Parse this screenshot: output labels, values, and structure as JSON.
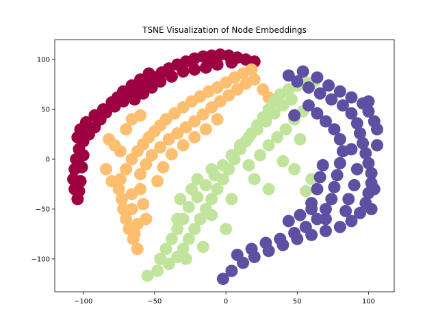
{
  "chart_data": {
    "type": "scatter",
    "title": "TSNE Visualization of Node Embeddings",
    "xlabel": "",
    "ylabel": "",
    "xlim": [
      -120,
      118
    ],
    "ylim": [
      -133,
      120
    ],
    "xticks": [
      -100,
      -50,
      0,
      50,
      100
    ],
    "yticks": [
      -100,
      -50,
      0,
      50,
      100
    ],
    "xtick_labels": [
      "−100",
      "−50",
      "0",
      "50",
      "100"
    ],
    "ytick_labels": [
      "−100",
      "−50",
      "0",
      "50",
      "100"
    ],
    "grid": false,
    "legend": "none",
    "series": [
      {
        "color": "#9e0142",
        "points": [
          [
            -104,
            -40
          ],
          [
            -106,
            -30
          ],
          [
            -107,
            -20
          ],
          [
            -106,
            -10
          ],
          [
            -105,
            0
          ],
          [
            -103,
            10
          ],
          [
            -100,
            18
          ],
          [
            -96,
            25
          ],
          [
            -92,
            32
          ],
          [
            -88,
            40
          ],
          [
            -84,
            47
          ],
          [
            -78,
            53
          ],
          [
            -72,
            58
          ],
          [
            -66,
            64
          ],
          [
            -60,
            70
          ],
          [
            -55,
            76
          ],
          [
            -50,
            82
          ],
          [
            -45,
            87
          ],
          [
            -40,
            91
          ],
          [
            -34,
            95
          ],
          [
            -28,
            98
          ],
          [
            -22,
            101
          ],
          [
            -16,
            103
          ],
          [
            -10,
            104
          ],
          [
            -4,
            105
          ],
          [
            2,
            104
          ],
          [
            8,
            102
          ],
          [
            14,
            100
          ],
          [
            20,
            98
          ],
          [
            -30,
            88
          ],
          [
            -22,
            90
          ],
          [
            -14,
            92
          ],
          [
            -6,
            95
          ],
          [
            -54,
            86
          ],
          [
            -60,
            80
          ],
          [
            -66,
            74
          ],
          [
            -72,
            68
          ],
          [
            -76,
            62
          ],
          [
            -80,
            57
          ],
          [
            -86,
            50
          ],
          [
            -92,
            44
          ],
          [
            -98,
            37
          ],
          [
            -102,
            30
          ],
          [
            -104,
            22
          ],
          [
            -100,
            4
          ],
          [
            -101,
            -8
          ],
          [
            -102,
            -22
          ],
          [
            -103,
            -32
          ],
          [
            -38,
            83
          ],
          [
            -46,
            78
          ],
          [
            -52,
            72
          ],
          [
            -58,
            66
          ],
          [
            -64,
            60
          ],
          [
            -10,
            98
          ],
          [
            4,
            97
          ]
        ]
      },
      {
        "color": "#fdbe6f",
        "points": [
          [
            -62,
            -90
          ],
          [
            -65,
            -80
          ],
          [
            -68,
            -70
          ],
          [
            -70,
            -60
          ],
          [
            -72,
            -50
          ],
          [
            -73,
            -40
          ],
          [
            -75,
            -30
          ],
          [
            -74,
            -20
          ],
          [
            -70,
            -10
          ],
          [
            -66,
            0
          ],
          [
            -62,
            8
          ],
          [
            -58,
            15
          ],
          [
            -54,
            22
          ],
          [
            -50,
            28
          ],
          [
            -46,
            34
          ],
          [
            -42,
            40
          ],
          [
            -36,
            46
          ],
          [
            -30,
            52
          ],
          [
            -24,
            58
          ],
          [
            -18,
            63
          ],
          [
            -12,
            68
          ],
          [
            -6,
            72
          ],
          [
            0,
            77
          ],
          [
            6,
            82
          ],
          [
            12,
            86
          ],
          [
            18,
            90
          ],
          [
            -56,
            -60
          ],
          [
            -58,
            -45
          ],
          [
            -60,
            -30
          ],
          [
            -60,
            -15
          ],
          [
            -56,
            -5
          ],
          [
            -52,
            4
          ],
          [
            -46,
            12
          ],
          [
            -40,
            20
          ],
          [
            -34,
            26
          ],
          [
            -28,
            32
          ],
          [
            -22,
            38
          ],
          [
            -16,
            45
          ],
          [
            -10,
            52
          ],
          [
            -4,
            58
          ],
          [
            2,
            64
          ],
          [
            8,
            70
          ],
          [
            14,
            76
          ],
          [
            20,
            80
          ],
          [
            -74,
            8
          ],
          [
            -78,
            14
          ],
          [
            -82,
            20
          ],
          [
            -64,
            -75
          ],
          [
            -66,
            -50
          ],
          [
            -48,
            -22
          ],
          [
            -44,
            -8
          ],
          [
            -38,
            5
          ],
          [
            -30,
            14
          ],
          [
            -22,
            22
          ],
          [
            -14,
            30
          ],
          [
            -6,
            40
          ],
          [
            -84,
            -10
          ],
          [
            -80,
            -22
          ],
          [
            -62,
            -65
          ],
          [
            -66,
            -35
          ],
          [
            26,
            70
          ],
          [
            30,
            62
          ],
          [
            -70,
            30
          ],
          [
            -66,
            40
          ],
          [
            -60,
            44
          ]
        ]
      },
      {
        "color": "#c1e49d",
        "points": [
          [
            -55,
            -117
          ],
          [
            -48,
            -112
          ],
          [
            -40,
            -105
          ],
          [
            -34,
            -98
          ],
          [
            -30,
            -90
          ],
          [
            -26,
            -80
          ],
          [
            -22,
            -70
          ],
          [
            -18,
            -60
          ],
          [
            -14,
            -50
          ],
          [
            -10,
            -40
          ],
          [
            -6,
            -30
          ],
          [
            -2,
            -20
          ],
          [
            2,
            -10
          ],
          [
            6,
            0
          ],
          [
            10,
            10
          ],
          [
            14,
            18
          ],
          [
            18,
            26
          ],
          [
            22,
            34
          ],
          [
            26,
            42
          ],
          [
            30,
            50
          ],
          [
            34,
            58
          ],
          [
            38,
            65
          ],
          [
            44,
            70
          ],
          [
            50,
            74
          ],
          [
            56,
            77
          ],
          [
            62,
            78
          ],
          [
            -42,
            -90
          ],
          [
            -38,
            -80
          ],
          [
            -34,
            -70
          ],
          [
            -30,
            -60
          ],
          [
            -26,
            -48
          ],
          [
            -20,
            -38
          ],
          [
            -14,
            -26
          ],
          [
            -8,
            -16
          ],
          [
            -2,
            -6
          ],
          [
            4,
            4
          ],
          [
            10,
            14
          ],
          [
            16,
            22
          ],
          [
            22,
            30
          ],
          [
            28,
            38
          ],
          [
            34,
            46
          ],
          [
            40,
            54
          ],
          [
            46,
            60
          ],
          [
            -34,
            -60
          ],
          [
            -32,
            -40
          ],
          [
            -20,
            -20
          ],
          [
            -10,
            -10
          ],
          [
            16,
            -6
          ],
          [
            24,
            4
          ],
          [
            30,
            14
          ],
          [
            36,
            22
          ],
          [
            42,
            30
          ],
          [
            48,
            40
          ],
          [
            54,
            48
          ],
          [
            -46,
            -100
          ],
          [
            -28,
            -100
          ],
          [
            -16,
            -88
          ],
          [
            0,
            -70
          ],
          [
            -24,
            -30
          ],
          [
            -10,
            -56
          ],
          [
            4,
            -40
          ],
          [
            20,
            -20
          ],
          [
            40,
            -2
          ],
          [
            52,
            20
          ],
          [
            60,
            -20
          ],
          [
            56,
            -32
          ],
          [
            48,
            -10
          ],
          [
            30,
            -30
          ]
        ]
      },
      {
        "color": "#5e4fa2",
        "points": [
          [
            -2,
            -120
          ],
          [
            4,
            -112
          ],
          [
            12,
            -104
          ],
          [
            20,
            -98
          ],
          [
            30,
            -92
          ],
          [
            40,
            -86
          ],
          [
            50,
            -80
          ],
          [
            60,
            -76
          ],
          [
            70,
            -72
          ],
          [
            80,
            -68
          ],
          [
            88,
            -62
          ],
          [
            94,
            -54
          ],
          [
            98,
            -44
          ],
          [
            100,
            -34
          ],
          [
            102,
            -24
          ],
          [
            102,
            -14
          ],
          [
            100,
            -4
          ],
          [
            98,
            6
          ],
          [
            96,
            16
          ],
          [
            94,
            26
          ],
          [
            92,
            36
          ],
          [
            88,
            46
          ],
          [
            82,
            54
          ],
          [
            74,
            60
          ],
          [
            66,
            66
          ],
          [
            58,
            72
          ],
          [
            50,
            78
          ],
          [
            44,
            84
          ],
          [
            54,
            88
          ],
          [
            64,
            82
          ],
          [
            72,
            74
          ],
          [
            80,
            68
          ],
          [
            88,
            62
          ],
          [
            96,
            56
          ],
          [
            100,
            48
          ],
          [
            104,
            38
          ],
          [
            106,
            30
          ],
          [
            8,
            -96
          ],
          [
            18,
            -90
          ],
          [
            28,
            -84
          ],
          [
            38,
            -80
          ],
          [
            48,
            -74
          ],
          [
            56,
            -68
          ],
          [
            64,
            -60
          ],
          [
            70,
            -50
          ],
          [
            74,
            -40
          ],
          [
            76,
            -28
          ],
          [
            78,
            -16
          ],
          [
            80,
            -4
          ],
          [
            82,
            8
          ],
          [
            80,
            20
          ],
          [
            76,
            30
          ],
          [
            70,
            38
          ],
          [
            64,
            46
          ],
          [
            58,
            54
          ],
          [
            52,
            -56
          ],
          [
            60,
            -44
          ],
          [
            64,
            -30
          ],
          [
            66,
            -18
          ],
          [
            68,
            -6
          ],
          [
            86,
            -40
          ],
          [
            90,
            -26
          ],
          [
            92,
            -10
          ],
          [
            60,
            -50
          ],
          [
            44,
            -62
          ],
          [
            88,
            10
          ],
          [
            104,
            -30
          ],
          [
            106,
            14
          ],
          [
            48,
            44
          ],
          [
            100,
            58
          ],
          [
            102,
            -50
          ],
          [
            84,
            -52
          ],
          [
            70,
            -60
          ]
        ]
      }
    ]
  }
}
